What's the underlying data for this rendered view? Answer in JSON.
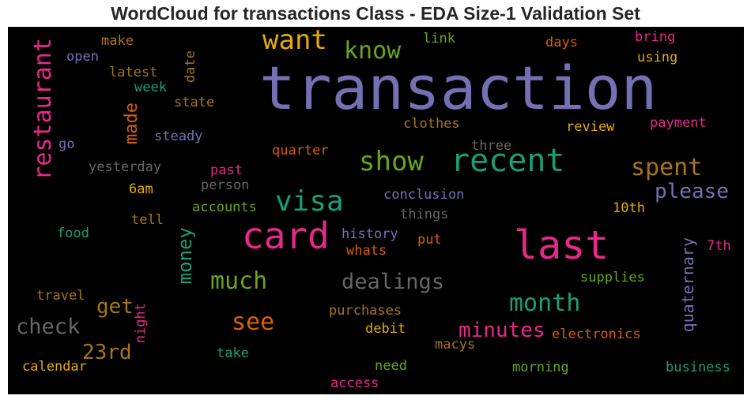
{
  "chart_data": {
    "type": "wordcloud",
    "title": "WordCloud for transactions Class - EDA Size-1 Validation Set",
    "background": "#000000",
    "words": [
      {
        "text": "transaction",
        "color": "#7570b3",
        "vertical": false
      },
      {
        "text": "last",
        "color": "#e7298a",
        "vertical": false
      },
      {
        "text": "card",
        "color": "#e7298a",
        "vertical": false
      },
      {
        "text": "recent",
        "color": "#1b9e77",
        "vertical": false
      },
      {
        "text": "want",
        "color": "#e6ab02",
        "vertical": false
      },
      {
        "text": "restaurant",
        "color": "#e7298a",
        "vertical": true
      },
      {
        "text": "visa",
        "color": "#1b9e77",
        "vertical": false
      },
      {
        "text": "show",
        "color": "#66a61e",
        "vertical": false
      },
      {
        "text": "know",
        "color": "#66a61e",
        "vertical": false
      },
      {
        "text": "spent",
        "color": "#a6761d",
        "vertical": false
      },
      {
        "text": "much",
        "color": "#66a61e",
        "vertical": false
      },
      {
        "text": "month",
        "color": "#1b9e77",
        "vertical": false
      },
      {
        "text": "see",
        "color": "#d95f02",
        "vertical": false
      },
      {
        "text": "dealings",
        "color": "#666666",
        "vertical": false
      },
      {
        "text": "check",
        "color": "#666666",
        "vertical": false
      },
      {
        "text": "please",
        "color": "#7570b3",
        "vertical": false
      },
      {
        "text": "money",
        "color": "#1b9e77",
        "vertical": true
      },
      {
        "text": "minutes",
        "color": "#e7298a",
        "vertical": false
      },
      {
        "text": "23rd",
        "color": "#a6761d",
        "vertical": false
      },
      {
        "text": "get",
        "color": "#a6761d",
        "vertical": false
      },
      {
        "text": "made",
        "color": "#d95f02",
        "vertical": true
      },
      {
        "text": "quaternary",
        "color": "#7570b3",
        "vertical": true
      },
      {
        "text": "make",
        "color": "#a6761d",
        "vertical": false
      },
      {
        "text": "link",
        "color": "#66a61e",
        "vertical": false
      },
      {
        "text": "days",
        "color": "#d95f02",
        "vertical": false
      },
      {
        "text": "bring",
        "color": "#e7298a",
        "vertical": false
      },
      {
        "text": "open",
        "color": "#7570b3",
        "vertical": false
      },
      {
        "text": "using",
        "color": "#e6ab02",
        "vertical": false
      },
      {
        "text": "latest",
        "color": "#a6761d",
        "vertical": false
      },
      {
        "text": "date",
        "color": "#a6761d",
        "vertical": true
      },
      {
        "text": "week",
        "color": "#1b9e77",
        "vertical": false
      },
      {
        "text": "state",
        "color": "#a6761d",
        "vertical": false
      },
      {
        "text": "clothes",
        "color": "#a6761d",
        "vertical": false
      },
      {
        "text": "review",
        "color": "#e6ab02",
        "vertical": false
      },
      {
        "text": "payment",
        "color": "#e7298a",
        "vertical": false
      },
      {
        "text": "go",
        "color": "#7570b3",
        "vertical": false
      },
      {
        "text": "steady",
        "color": "#7570b3",
        "vertical": false
      },
      {
        "text": "quarter",
        "color": "#d95f02",
        "vertical": false
      },
      {
        "text": "three",
        "color": "#666666",
        "vertical": false
      },
      {
        "text": "yesterday",
        "color": "#666666",
        "vertical": false
      },
      {
        "text": "past",
        "color": "#e7298a",
        "vertical": false
      },
      {
        "text": "person",
        "color": "#666666",
        "vertical": false
      },
      {
        "text": "6am",
        "color": "#e6ab02",
        "vertical": false
      },
      {
        "text": "conclusion",
        "color": "#7570b3",
        "vertical": false
      },
      {
        "text": "accounts",
        "color": "#66a61e",
        "vertical": false
      },
      {
        "text": "things",
        "color": "#666666",
        "vertical": false
      },
      {
        "text": "10th",
        "color": "#e6ab02",
        "vertical": false
      },
      {
        "text": "tell",
        "color": "#a6761d",
        "vertical": false
      },
      {
        "text": "food",
        "color": "#1b9e77",
        "vertical": false
      },
      {
        "text": "history",
        "color": "#7570b3",
        "vertical": false
      },
      {
        "text": "put",
        "color": "#d95f02",
        "vertical": false
      },
      {
        "text": "whats",
        "color": "#d95f02",
        "vertical": false
      },
      {
        "text": "7th",
        "color": "#e7298a",
        "vertical": false
      },
      {
        "text": "supplies",
        "color": "#66a61e",
        "vertical": false
      },
      {
        "text": "travel",
        "color": "#a6761d",
        "vertical": false
      },
      {
        "text": "night",
        "color": "#e7298a",
        "vertical": true
      },
      {
        "text": "purchases",
        "color": "#a6761d",
        "vertical": false
      },
      {
        "text": "debit",
        "color": "#e6ab02",
        "vertical": false
      },
      {
        "text": "electronics",
        "color": "#d95f02",
        "vertical": false
      },
      {
        "text": "take",
        "color": "#1b9e77",
        "vertical": false
      },
      {
        "text": "macys",
        "color": "#a6761d",
        "vertical": false
      },
      {
        "text": "calendar",
        "color": "#e6ab02",
        "vertical": false
      },
      {
        "text": "need",
        "color": "#66a61e",
        "vertical": false
      },
      {
        "text": "morning",
        "color": "#66a61e",
        "vertical": false
      },
      {
        "text": "business",
        "color": "#1b9e77",
        "vertical": false
      },
      {
        "text": "access",
        "color": "#e7298a",
        "vertical": false
      }
    ]
  }
}
